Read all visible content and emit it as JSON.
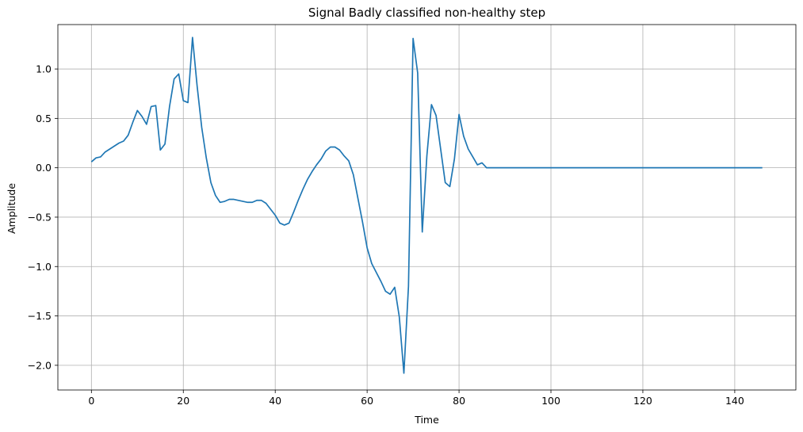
{
  "chart_data": {
    "type": "line",
    "title": "Signal Badly classified non-healthy step",
    "xlabel": "Time",
    "ylabel": "Amplitude",
    "xlim": [
      -7.3,
      153.3
    ],
    "ylim": [
      -2.25,
      1.45
    ],
    "x_ticks": [
      0,
      20,
      40,
      60,
      80,
      100,
      120,
      140
    ],
    "y_ticks": [
      -2.0,
      -1.5,
      -1.0,
      -0.5,
      0.0,
      0.5,
      1.0
    ],
    "x_tick_labels": [
      "0",
      "20",
      "40",
      "60",
      "80",
      "100",
      "120",
      "140"
    ],
    "y_tick_labels": [
      "−2.0",
      "−1.5",
      "−1.0",
      "−0.5",
      "0.0",
      "0.5",
      "1.0"
    ],
    "grid": true,
    "line_color": "#1f77b4",
    "grid_color": "#b0b0b0",
    "x": [
      0,
      1,
      2,
      3,
      4,
      5,
      6,
      7,
      8,
      9,
      10,
      11,
      12,
      13,
      14,
      15,
      16,
      17,
      18,
      19,
      20,
      21,
      22,
      23,
      24,
      25,
      26,
      27,
      28,
      29,
      30,
      31,
      32,
      33,
      34,
      35,
      36,
      37,
      38,
      39,
      40,
      41,
      42,
      43,
      44,
      45,
      46,
      47,
      48,
      49,
      50,
      51,
      52,
      53,
      54,
      55,
      56,
      57,
      58,
      59,
      60,
      61,
      62,
      63,
      64,
      65,
      66,
      67,
      68,
      69,
      70,
      71,
      72,
      73,
      74,
      75,
      76,
      77,
      78,
      79,
      80,
      81,
      82,
      83,
      84,
      85,
      86,
      87,
      88,
      89,
      90,
      91,
      92,
      93,
      94,
      95,
      96,
      97,
      98,
      99,
      100,
      101,
      102,
      103,
      104,
      105,
      106,
      107,
      108,
      109,
      110,
      111,
      112,
      113,
      114,
      115,
      116,
      117,
      118,
      119,
      120,
      121,
      122,
      123,
      124,
      125,
      126,
      127,
      128,
      129,
      130,
      131,
      132,
      133,
      134,
      135,
      136,
      137,
      138,
      139,
      140,
      141,
      142,
      143,
      144,
      145,
      146
    ],
    "y": [
      0.06,
      0.1,
      0.11,
      0.16,
      0.19,
      0.22,
      0.25,
      0.27,
      0.33,
      0.46,
      0.58,
      0.52,
      0.44,
      0.62,
      0.63,
      0.18,
      0.24,
      0.62,
      0.9,
      0.95,
      0.68,
      0.66,
      1.32,
      0.83,
      0.41,
      0.1,
      -0.15,
      -0.28,
      -0.35,
      -0.34,
      -0.32,
      -0.32,
      -0.33,
      -0.34,
      -0.35,
      -0.35,
      -0.33,
      -0.33,
      -0.36,
      -0.42,
      -0.48,
      -0.56,
      -0.58,
      -0.56,
      -0.45,
      -0.33,
      -0.22,
      -0.12,
      -0.04,
      0.03,
      0.09,
      0.17,
      0.21,
      0.21,
      0.18,
      0.12,
      0.07,
      -0.07,
      -0.31,
      -0.55,
      -0.81,
      -0.97,
      -1.06,
      -1.15,
      -1.25,
      -1.28,
      -1.21,
      -1.51,
      -2.08,
      -1.2,
      1.31,
      0.96,
      -0.65,
      0.12,
      0.64,
      0.53,
      0.19,
      -0.15,
      -0.19,
      0.09,
      0.54,
      0.32,
      0.19,
      0.11,
      0.03,
      0.05,
      0.0,
      0.0,
      0.0,
      0.0,
      0.0,
      0.0,
      0.0,
      0.0,
      0.0,
      0.0,
      0.0,
      0.0,
      0.0,
      0.0,
      0.0,
      0.0,
      0.0,
      0.0,
      0.0,
      0.0,
      0.0,
      0.0,
      0.0,
      0.0,
      0.0,
      0.0,
      0.0,
      0.0,
      0.0,
      0.0,
      0.0,
      0.0,
      0.0,
      0.0,
      0.0,
      0.0,
      0.0,
      0.0,
      0.0,
      0.0,
      0.0,
      0.0,
      0.0,
      0.0,
      0.0,
      0.0,
      0.0,
      0.0,
      0.0,
      0.0,
      0.0,
      0.0,
      0.0,
      0.0,
      0.0,
      0.0,
      0.0,
      0.0,
      0.0,
      0.0,
      0.0
    ]
  }
}
